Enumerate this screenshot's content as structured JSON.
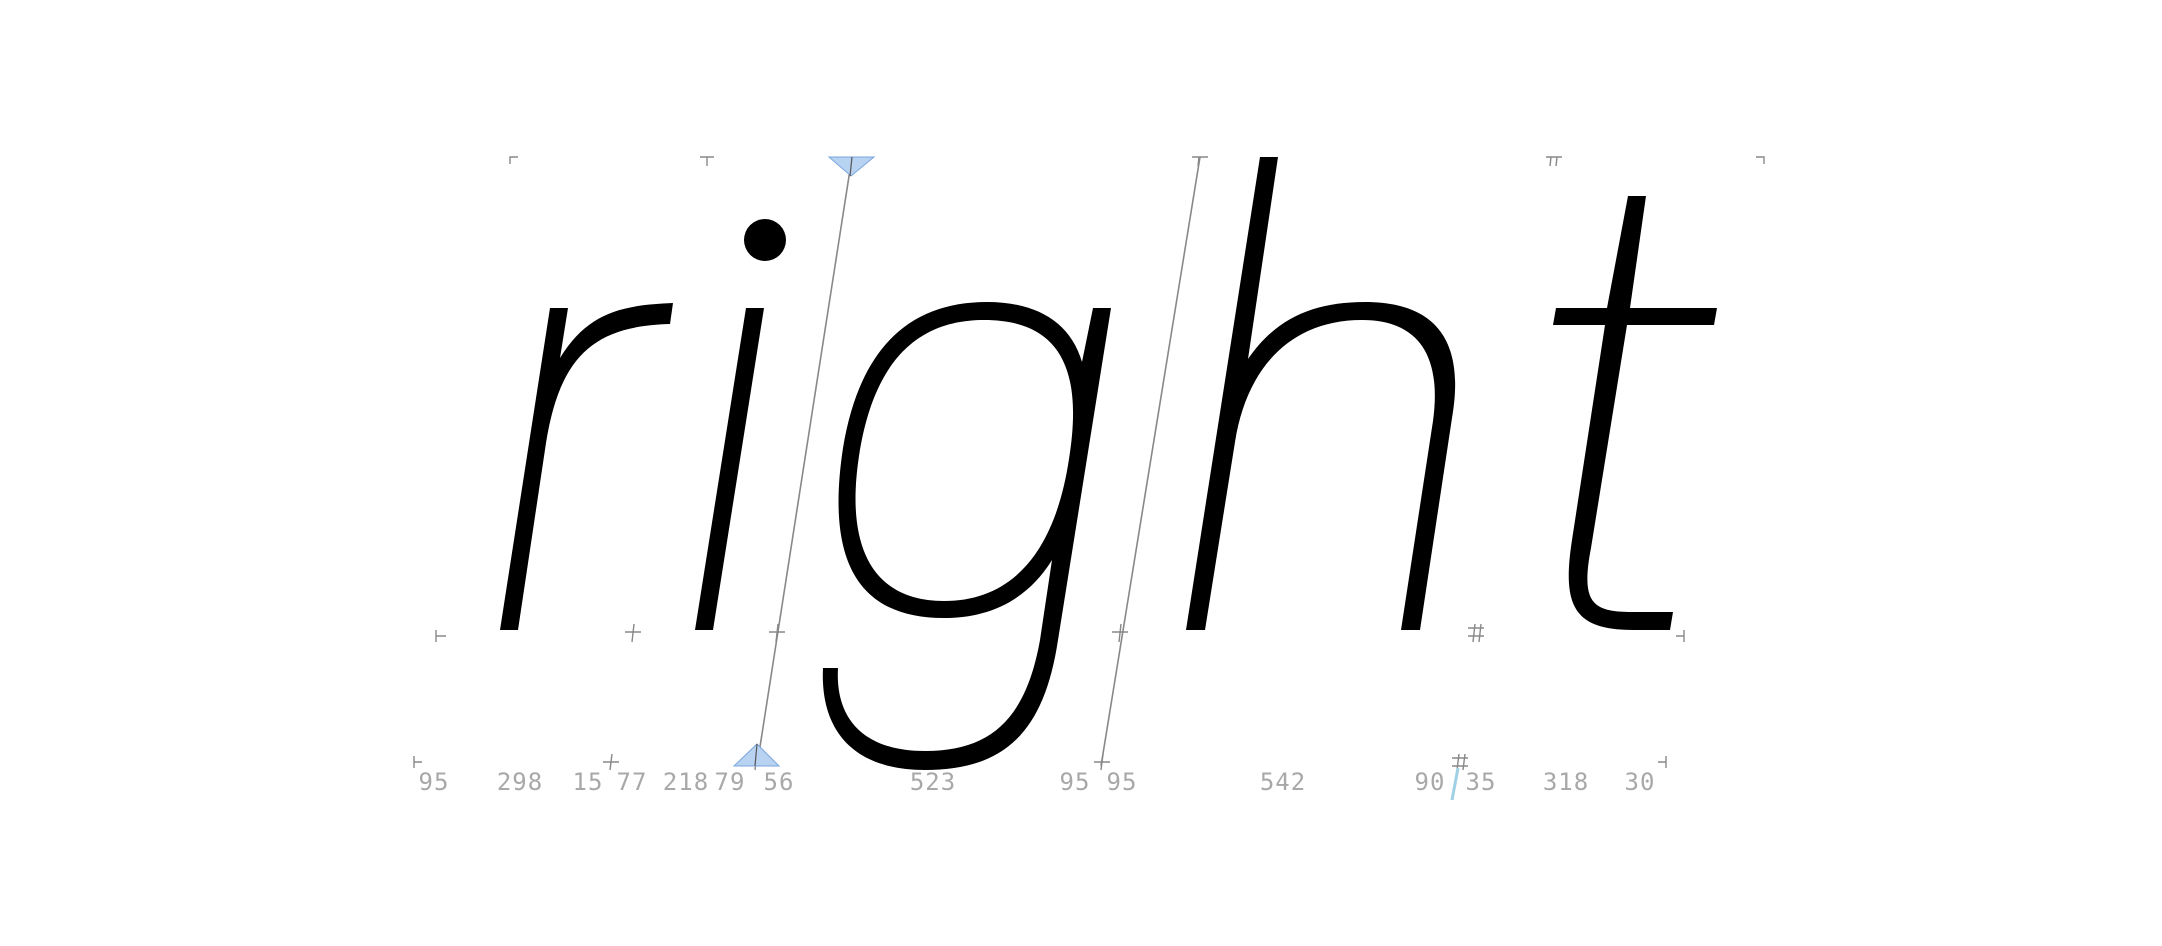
{
  "word": "right",
  "glyphs": [
    {
      "char": "r"
    },
    {
      "char": "i"
    },
    {
      "char": "g"
    },
    {
      "char": "h"
    },
    {
      "char": "t"
    }
  ],
  "spacing_values": [
    "95",
    "298",
    "15",
    "77",
    "218",
    "79",
    "56",
    "523",
    "95",
    "95",
    "542",
    "90",
    "35",
    "318",
    "30"
  ],
  "colors": {
    "glyph": "#000000",
    "guide": "#888888",
    "label": "#a8a8a8",
    "handle": "#b8d2f2",
    "handle_stroke": "#7aa6dc",
    "cursor": "#9fd0e6"
  }
}
